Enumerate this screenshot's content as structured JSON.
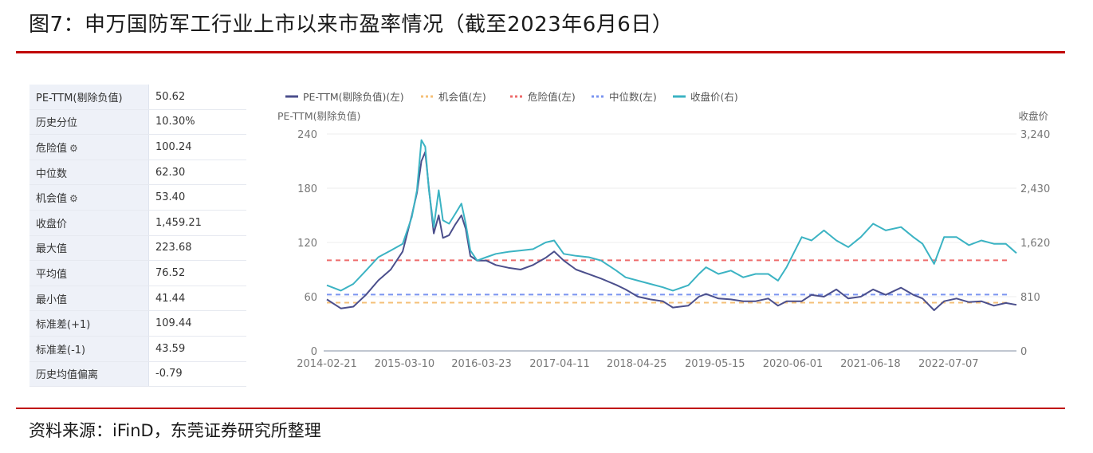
{
  "title": "图7：申万国防军工行业上市以来市盈率情况（截至2023年6月6日）",
  "source": "资料来源：iFinD，东莞证券研究所整理",
  "stats": [
    {
      "label": "PE-TTM(剔除负值)",
      "value": "50.62",
      "gear": false
    },
    {
      "label": "历史分位",
      "value": "10.30%",
      "gear": false
    },
    {
      "label": "危险值",
      "value": "100.24",
      "gear": true
    },
    {
      "label": "中位数",
      "value": "62.30",
      "gear": false
    },
    {
      "label": "机会值",
      "value": "53.40",
      "gear": true
    },
    {
      "label": "收盘价",
      "value": "1,459.21",
      "gear": false
    },
    {
      "label": "最大值",
      "value": "223.68",
      "gear": false
    },
    {
      "label": "平均值",
      "value": "76.52",
      "gear": false
    },
    {
      "label": "最小值",
      "value": "41.44",
      "gear": false
    },
    {
      "label": "标准差(+1)",
      "value": "109.44",
      "gear": false
    },
    {
      "label": "标准差(-1)",
      "value": "43.59",
      "gear": false
    },
    {
      "label": "历史均值偏离",
      "value": "-0.79",
      "gear": false
    }
  ],
  "chart_data": {
    "type": "line",
    "ylabel_left": "PE-TTM(剔除负值)",
    "ylabel_right": "收盘价",
    "ylim_left": [
      0,
      240
    ],
    "ylim_right": [
      0,
      3240
    ],
    "yticks_left": [
      "0",
      "60",
      "120",
      "180",
      "240"
    ],
    "yticks_right": [
      "0",
      "810",
      "1,620",
      "2,430",
      "3,240"
    ],
    "xrange": [
      "2014-02-21",
      "2023-06-06"
    ],
    "xticks": [
      "2014-02-21",
      "2015-03-10",
      "2016-03-23",
      "2017-04-11",
      "2018-04-25",
      "2019-05-15",
      "2020-06-01",
      "2021-06-18",
      "2022-07-07"
    ],
    "legend_position": "top",
    "grid": true,
    "colors": {
      "pe": "#4b4f8c",
      "opportunity": "#f5c078",
      "danger": "#ee6c6c",
      "median": "#7b95f0",
      "close": "#3bb3c3"
    },
    "series": [
      {
        "name": "PE-TTM(剔除负值)(左)",
        "axis": "left",
        "x": [
          "2014-02-21",
          "2014-05-01",
          "2014-07-01",
          "2014-09-01",
          "2014-11-01",
          "2015-01-01",
          "2015-03-01",
          "2015-04-15",
          "2015-05-10",
          "2015-06-01",
          "2015-06-20",
          "2015-07-08",
          "2015-08-01",
          "2015-08-25",
          "2015-09-15",
          "2015-10-15",
          "2015-11-15",
          "2015-12-15",
          "2016-01-05",
          "2016-01-28",
          "2016-03-01",
          "2016-04-15",
          "2016-06-01",
          "2016-08-01",
          "2016-10-01",
          "2016-12-01",
          "2017-02-01",
          "2017-03-15",
          "2017-05-01",
          "2017-07-01",
          "2017-09-01",
          "2017-11-01",
          "2018-01-15",
          "2018-03-01",
          "2018-05-01",
          "2018-07-01",
          "2018-09-01",
          "2018-10-20",
          "2019-01-04",
          "2019-02-25",
          "2019-04-01",
          "2019-06-01",
          "2019-08-01",
          "2019-10-01",
          "2019-12-01",
          "2020-02-01",
          "2020-03-20",
          "2020-05-01",
          "2020-07-15",
          "2020-09-01",
          "2020-11-01",
          "2021-01-01",
          "2021-03-01",
          "2021-05-01",
          "2021-07-01",
          "2021-09-01",
          "2021-11-15",
          "2022-01-15",
          "2022-03-01",
          "2022-04-27",
          "2022-06-15",
          "2022-08-15",
          "2022-10-15",
          "2022-12-15",
          "2023-02-15",
          "2023-04-15",
          "2023-06-06"
        ],
        "values": [
          57,
          47,
          49,
          62,
          78,
          90,
          110,
          150,
          175,
          210,
          220,
          180,
          130,
          150,
          125,
          128,
          140,
          150,
          135,
          105,
          100,
          100,
          95,
          92,
          90,
          95,
          103,
          110,
          100,
          90,
          85,
          80,
          73,
          68,
          60,
          57,
          55,
          48,
          50,
          60,
          63,
          58,
          57,
          55,
          55,
          58,
          50,
          55,
          55,
          62,
          60,
          68,
          58,
          60,
          68,
          62,
          70,
          62,
          58,
          45,
          55,
          58,
          54,
          55,
          50,
          53,
          51
        ]
      },
      {
        "name": "收盘价(右)",
        "axis": "right",
        "x": [
          "2014-02-21",
          "2014-05-01",
          "2014-07-01",
          "2014-09-01",
          "2014-11-01",
          "2015-01-01",
          "2015-03-01",
          "2015-04-15",
          "2015-05-10",
          "2015-06-01",
          "2015-06-20",
          "2015-07-08",
          "2015-08-01",
          "2015-08-25",
          "2015-09-15",
          "2015-10-15",
          "2015-11-15",
          "2015-12-15",
          "2016-01-05",
          "2016-01-28",
          "2016-03-01",
          "2016-04-15",
          "2016-06-01",
          "2016-08-01",
          "2016-10-01",
          "2016-12-01",
          "2017-02-01",
          "2017-03-15",
          "2017-05-01",
          "2017-07-01",
          "2017-09-01",
          "2017-11-01",
          "2018-01-15",
          "2018-03-01",
          "2018-05-01",
          "2018-07-01",
          "2018-09-01",
          "2018-10-20",
          "2019-01-04",
          "2019-02-25",
          "2019-04-01",
          "2019-06-01",
          "2019-08-01",
          "2019-10-01",
          "2019-12-01",
          "2020-02-01",
          "2020-03-20",
          "2020-05-01",
          "2020-07-15",
          "2020-09-01",
          "2020-11-01",
          "2021-01-01",
          "2021-03-01",
          "2021-05-01",
          "2021-07-01",
          "2021-09-01",
          "2021-11-15",
          "2022-01-15",
          "2022-03-01",
          "2022-04-27",
          "2022-06-15",
          "2022-08-15",
          "2022-10-15",
          "2022-12-15",
          "2023-02-15",
          "2023-04-15",
          "2023-06-06"
        ],
        "values": [
          980,
          900,
          1000,
          1200,
          1400,
          1500,
          1600,
          2000,
          2400,
          3150,
          3050,
          2400,
          1850,
          2400,
          1950,
          1900,
          2050,
          2200,
          1900,
          1500,
          1350,
          1400,
          1450,
          1480,
          1500,
          1520,
          1620,
          1650,
          1450,
          1420,
          1400,
          1350,
          1200,
          1100,
          1050,
          1000,
          950,
          900,
          980,
          1150,
          1250,
          1150,
          1200,
          1100,
          1150,
          1150,
          1050,
          1250,
          1700,
          1650,
          1800,
          1650,
          1550,
          1700,
          1900,
          1800,
          1850,
          1700,
          1600,
          1300,
          1700,
          1700,
          1580,
          1650,
          1600,
          1600,
          1460
        ]
      },
      {
        "name": "危险值(左)",
        "axis": "left",
        "value": 100.24
      },
      {
        "name": "中位数(左)",
        "axis": "left",
        "value": 62.3
      },
      {
        "name": "机会值(左)",
        "axis": "left",
        "value": 53.4
      }
    ],
    "legend": [
      {
        "key": "pe",
        "label": "PE-TTM(剔除负值)(左)",
        "style": "solid"
      },
      {
        "key": "opportunity",
        "label": "机会值(左)",
        "style": "dashed"
      },
      {
        "key": "danger",
        "label": "危险值(左)",
        "style": "dashed"
      },
      {
        "key": "median",
        "label": "中位数(左)",
        "style": "dashed"
      },
      {
        "key": "close",
        "label": "收盘价(右)",
        "style": "solid"
      }
    ]
  }
}
